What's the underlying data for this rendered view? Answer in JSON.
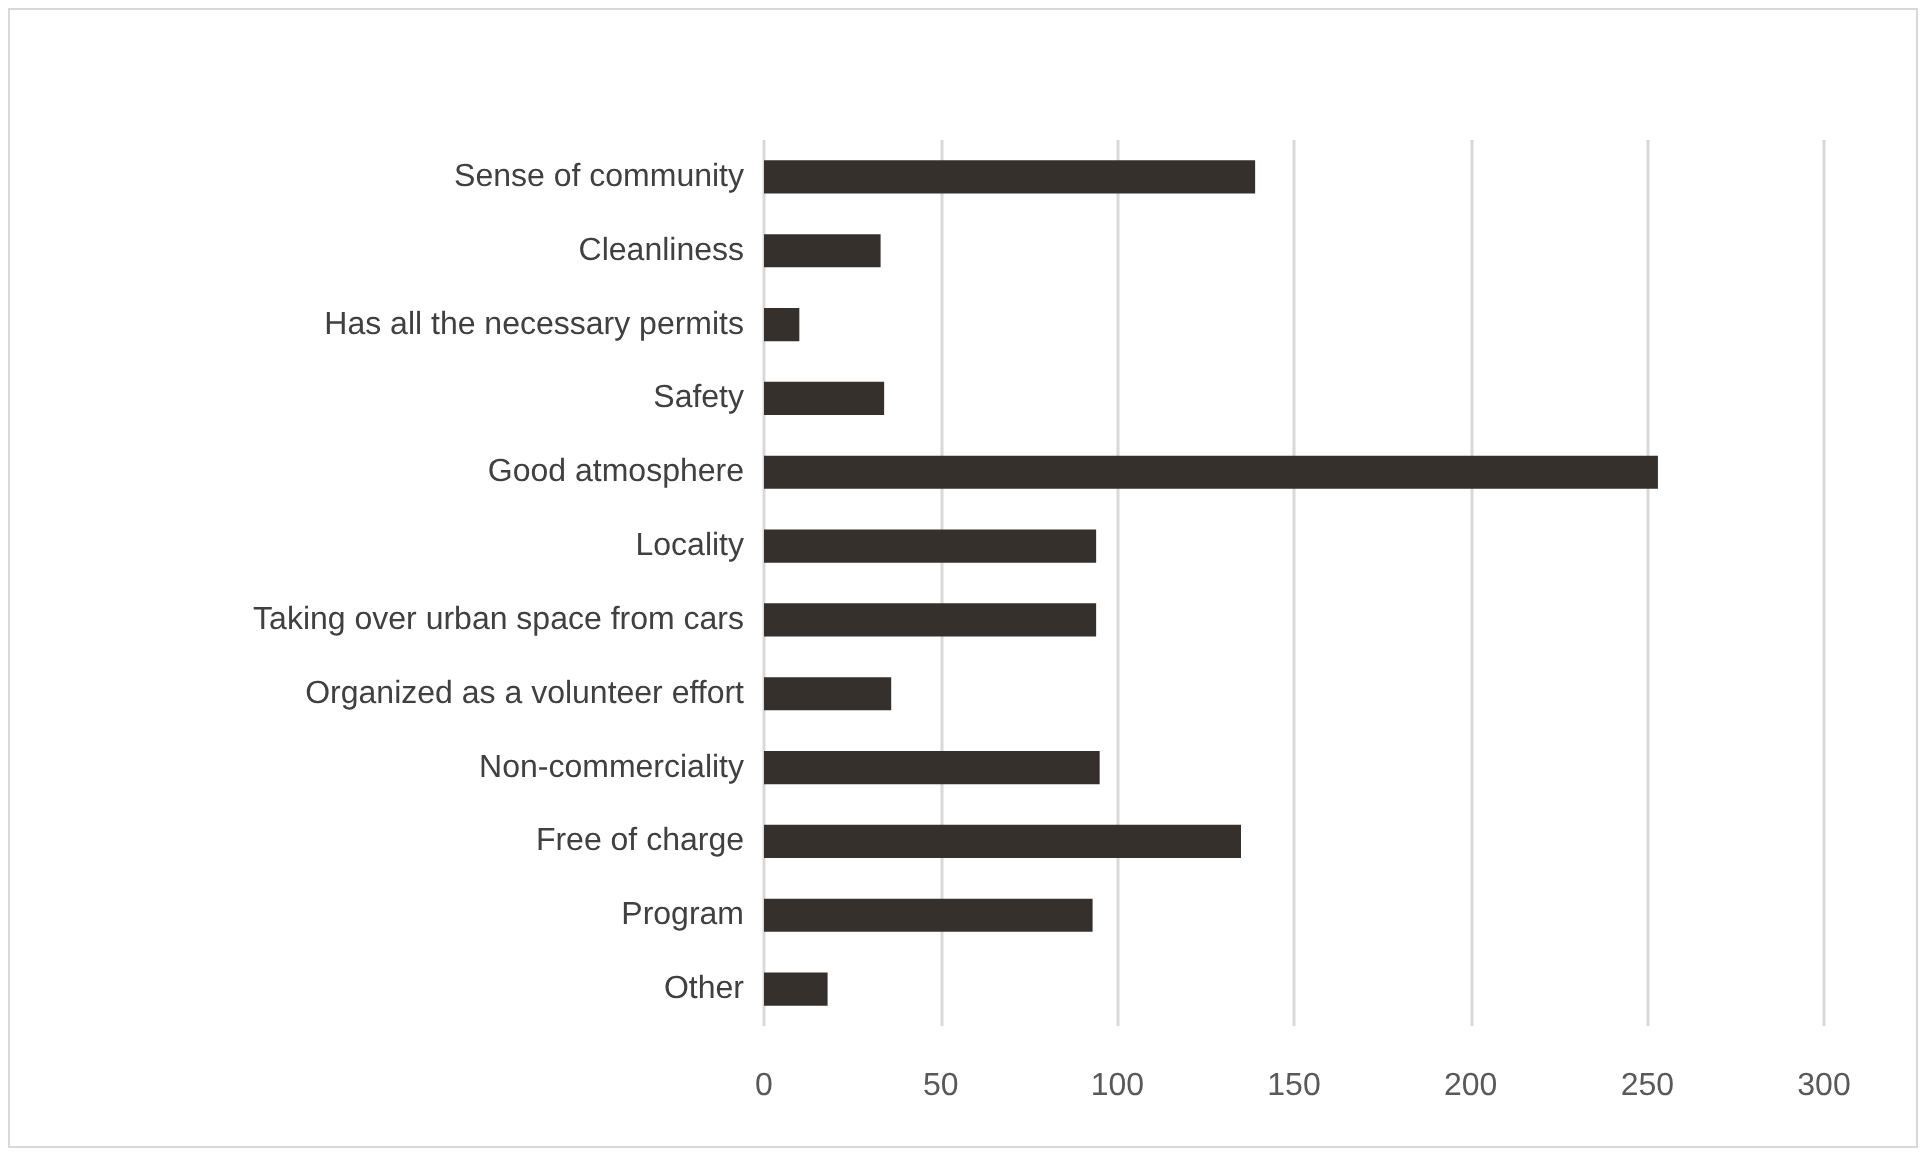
{
  "chart_data": {
    "type": "bar",
    "orientation": "horizontal",
    "categories": [
      "Sense of community",
      "Cleanliness",
      "Has all the necessary permits",
      "Safety",
      "Good atmosphere",
      "Locality",
      "Taking over urban space from cars",
      "Organized as a volunteer effort",
      "Non-commerciality",
      "Free of charge",
      "Program",
      "Other"
    ],
    "values": [
      139,
      33,
      10,
      34,
      253,
      94,
      94,
      36,
      95,
      135,
      93,
      18
    ],
    "color": "#36302d",
    "xlim": [
      0,
      300
    ],
    "xticks": [
      0,
      50,
      100,
      150,
      200,
      250,
      300
    ],
    "grid": "x"
  }
}
